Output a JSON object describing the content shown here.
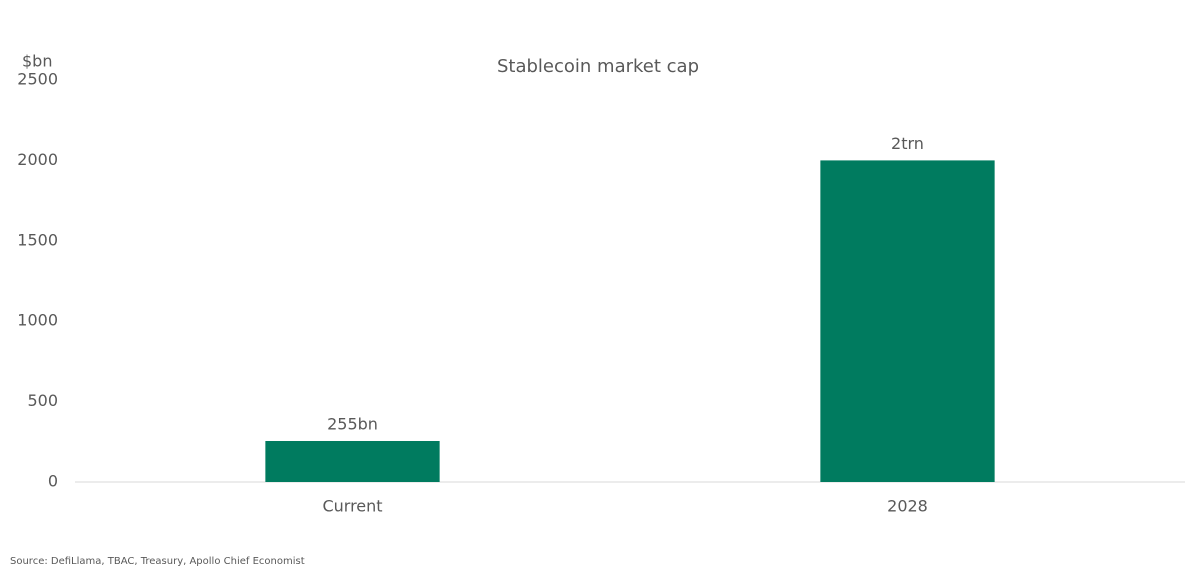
{
  "chart_data": {
    "type": "bar",
    "title": "Stablecoin market cap",
    "y_label": "$bn",
    "categories": [
      "Current",
      "2028"
    ],
    "values": [
      255,
      2000
    ],
    "value_labels": [
      "255bn",
      "2trn"
    ],
    "color": "#007b5f",
    "ylim": [
      0,
      2500
    ],
    "yticks": [
      0,
      500,
      1000,
      1500,
      2000,
      2500
    ],
    "grid": false,
    "source": "Source: DefiLlama, TBAC, Treasury, Apollo Chief Economist"
  }
}
